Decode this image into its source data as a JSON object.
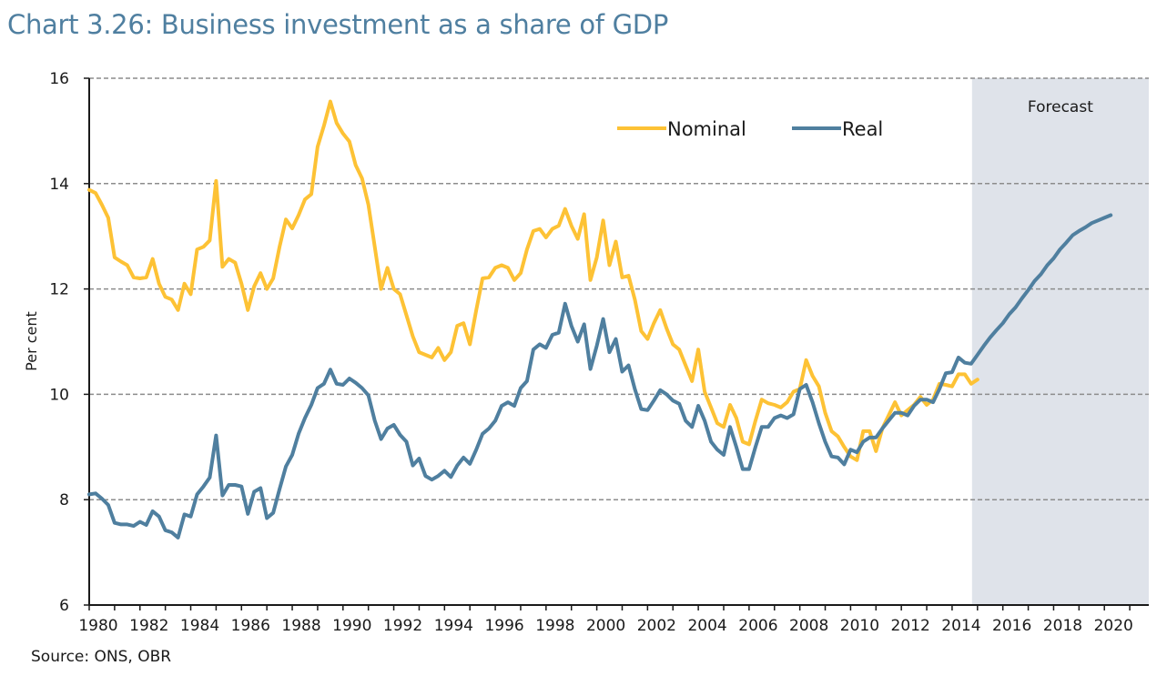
{
  "title": "Chart 3.26: Business investment as a share of GDP",
  "source": "Source: ONS, OBR",
  "chart_data": {
    "type": "line",
    "title": "Chart 3.26: Business investment as a share of GDP",
    "xlabel": "",
    "ylabel": "Per cent",
    "ylim": [
      6,
      16
    ],
    "xlim": [
      1980,
      2021.25
    ],
    "yticks": [
      "6",
      "8",
      "10",
      "12",
      "14",
      "16"
    ],
    "ytick_values": [
      6,
      8,
      10,
      12,
      14,
      16
    ],
    "xticks": [
      "1980",
      "1982",
      "1984",
      "1986",
      "1988",
      "1990",
      "1992",
      "1994",
      "1996",
      "1998",
      "2000",
      "2002",
      "2004",
      "2006",
      "2008",
      "2010",
      "2012",
      "2014",
      "2016",
      "2018",
      "2020"
    ],
    "grid": "horizontal dashed",
    "legend_position": "top-center",
    "frequency": "quarterly",
    "x_start": 1980,
    "x_step": 0.25,
    "shaded_region": {
      "label": "Forecast",
      "from": 2015.0,
      "to": 2021.25,
      "color": "#dfe3ea"
    },
    "series": [
      {
        "name": "Nominal",
        "color": "#fdc235",
        "values": [
          13.88,
          13.82,
          13.6,
          13.35,
          12.6,
          12.52,
          12.45,
          12.22,
          12.2,
          12.22,
          12.57,
          12.1,
          11.85,
          11.8,
          11.6,
          12.1,
          11.9,
          12.75,
          12.8,
          12.92,
          14.05,
          12.42,
          12.57,
          12.5,
          12.1,
          11.6,
          12.05,
          12.3,
          12.0,
          12.2,
          12.8,
          13.32,
          13.15,
          13.4,
          13.7,
          13.8,
          14.7,
          15.1,
          15.56,
          15.15,
          14.95,
          14.8,
          14.35,
          14.1,
          13.6,
          12.8,
          12.0,
          12.4,
          12.0,
          11.9,
          11.5,
          11.1,
          10.8,
          10.75,
          10.7,
          10.88,
          10.65,
          10.8,
          11.3,
          11.35,
          10.95,
          11.6,
          12.2,
          12.22,
          12.4,
          12.45,
          12.4,
          12.17,
          12.3,
          12.75,
          13.1,
          13.14,
          12.98,
          13.14,
          13.2,
          13.52,
          13.2,
          12.95,
          13.42,
          12.17,
          12.6,
          13.3,
          12.45,
          12.9,
          12.22,
          12.25,
          11.8,
          11.2,
          11.05,
          11.35,
          11.6,
          11.25,
          10.95,
          10.85,
          10.55,
          10.25,
          10.85,
          10.05,
          9.75,
          9.45,
          9.38,
          9.8,
          9.55,
          9.1,
          9.05,
          9.5,
          9.9,
          9.83,
          9.8,
          9.75,
          9.85,
          10.05,
          10.1,
          10.65,
          10.35,
          10.15,
          9.65,
          9.3,
          9.2,
          9.0,
          8.82,
          8.75,
          9.3,
          9.3,
          8.92,
          9.35,
          9.6,
          9.85,
          9.6,
          9.7,
          9.8,
          9.95,
          9.8,
          9.9,
          10.2,
          10.18,
          10.15,
          10.38,
          10.38,
          10.2,
          10.28
        ]
      },
      {
        "name": "Real",
        "color": "#4f7f9f",
        "values": [
          8.1,
          8.12,
          8.02,
          7.9,
          7.56,
          7.53,
          7.53,
          7.5,
          7.58,
          7.52,
          7.78,
          7.68,
          7.42,
          7.38,
          7.28,
          7.72,
          7.68,
          8.1,
          8.25,
          8.42,
          9.22,
          8.08,
          8.28,
          8.28,
          8.25,
          7.73,
          8.15,
          8.22,
          7.65,
          7.75,
          8.2,
          8.63,
          8.85,
          9.25,
          9.55,
          9.8,
          10.12,
          10.2,
          10.47,
          10.2,
          10.18,
          10.3,
          10.22,
          10.12,
          9.98,
          9.5,
          9.15,
          9.35,
          9.42,
          9.23,
          9.1,
          8.65,
          8.78,
          8.45,
          8.38,
          8.45,
          8.55,
          8.43,
          8.65,
          8.8,
          8.68,
          8.95,
          9.25,
          9.35,
          9.5,
          9.78,
          9.85,
          9.78,
          10.12,
          10.25,
          10.85,
          10.95,
          10.88,
          11.13,
          11.17,
          11.72,
          11.3,
          11.0,
          11.33,
          10.48,
          10.92,
          11.43,
          10.8,
          11.05,
          10.43,
          10.55,
          10.1,
          9.72,
          9.7,
          9.88,
          10.08,
          10.0,
          9.88,
          9.82,
          9.5,
          9.38,
          9.78,
          9.5,
          9.1,
          8.95,
          8.85,
          9.38,
          9.0,
          8.58,
          8.58,
          9.0,
          9.38,
          9.38,
          9.55,
          9.6,
          9.55,
          9.62,
          10.1,
          10.18,
          9.85,
          9.45,
          9.1,
          8.82,
          8.8,
          8.67,
          8.95,
          8.9,
          9.1,
          9.18,
          9.18,
          9.35,
          9.5,
          9.65,
          9.65,
          9.6,
          9.78,
          9.9,
          9.9,
          9.85,
          10.1,
          10.4,
          10.42,
          10.7,
          10.6,
          10.58,
          10.75,
          10.92,
          11.08,
          11.22,
          11.35,
          11.52,
          11.65,
          11.82,
          11.98,
          12.15,
          12.28,
          12.45,
          12.58,
          12.75,
          12.88,
          13.02,
          13.1,
          13.17,
          13.25,
          13.3,
          13.35,
          13.4
        ]
      }
    ]
  }
}
